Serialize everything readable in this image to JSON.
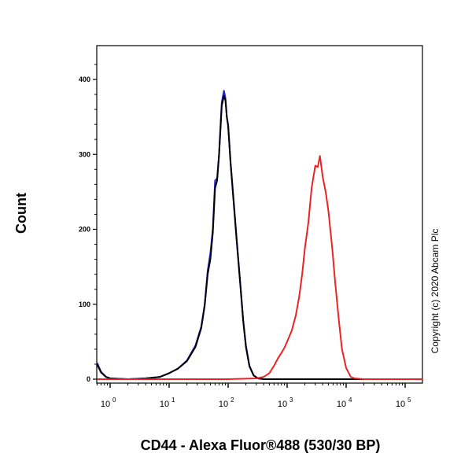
{
  "chart_data": {
    "type": "line",
    "xlabel": "CD44 - Alexa Fluor®488 (530/30 BP)",
    "ylabel": "Count",
    "x_scale": "log",
    "xlim": [
      0.6,
      200000
    ],
    "ylim": [
      0,
      440
    ],
    "x_ticks": [
      {
        "base": "10",
        "exp": "0",
        "value": 1
      },
      {
        "base": "10",
        "exp": "1",
        "value": 10
      },
      {
        "base": "10",
        "exp": "2",
        "value": 100
      },
      {
        "base": "10",
        "exp": "3",
        "value": 1000
      },
      {
        "base": "10",
        "exp": "4",
        "value": 10000
      },
      {
        "base": "10",
        "exp": "5",
        "value": 100000
      }
    ],
    "y_ticks": [
      {
        "label": "0",
        "value": 0
      },
      {
        "label": "100",
        "value": 100
      },
      {
        "label": "200",
        "value": 200
      },
      {
        "label": "300",
        "value": 300
      },
      {
        "label": "400",
        "value": 400
      }
    ],
    "series": [
      {
        "color": "#2222cc",
        "x": [
          0.6,
          0.7,
          0.85,
          1,
          2,
          4,
          7,
          10,
          14,
          20,
          28,
          35,
          40,
          45,
          50,
          55,
          60,
          65,
          70,
          78,
          85,
          90,
          95,
          100,
          110,
          125,
          140,
          160,
          180,
          200,
          230,
          270,
          320,
          400,
          600,
          1000,
          5000,
          100000,
          200000
        ],
        "y": [
          22,
          10,
          3,
          1,
          0,
          1,
          3,
          8,
          14,
          25,
          45,
          70,
          100,
          145,
          168,
          200,
          265,
          268,
          300,
          370,
          385,
          375,
          350,
          340,
          290,
          235,
          185,
          130,
          80,
          45,
          18,
          5,
          1,
          0,
          0,
          0,
          0,
          0,
          0
        ]
      },
      {
        "color": "#000000",
        "x": [
          0.6,
          0.7,
          0.85,
          1,
          2,
          4,
          7,
          10,
          14,
          20,
          28,
          35,
          40,
          45,
          50,
          55,
          60,
          65,
          70,
          78,
          85,
          90,
          95,
          100,
          110,
          125,
          140,
          160,
          180,
          200,
          230,
          270,
          320,
          400,
          600,
          1000,
          5000,
          100000,
          200000
        ],
        "y": [
          20,
          9,
          3,
          1,
          0,
          1,
          3,
          8,
          14,
          24,
          43,
          68,
          98,
          140,
          160,
          195,
          255,
          265,
          298,
          365,
          378,
          372,
          350,
          338,
          288,
          232,
          183,
          128,
          78,
          43,
          17,
          5,
          1,
          0,
          0,
          0,
          0,
          0,
          0
        ]
      },
      {
        "color": "#ee2222",
        "x": [
          0.6,
          100,
          300,
          400,
          500,
          600,
          700,
          800,
          900,
          1000,
          1200,
          1400,
          1600,
          1800,
          2000,
          2300,
          2600,
          3000,
          3300,
          3600,
          4000,
          4500,
          5000,
          5800,
          6500,
          7500,
          8500,
          10000,
          12000,
          14000,
          20000,
          200000
        ],
        "y": [
          0,
          0,
          1,
          3,
          8,
          18,
          28,
          35,
          42,
          50,
          65,
          85,
          110,
          140,
          175,
          210,
          255,
          285,
          283,
          298,
          270,
          250,
          225,
          175,
          130,
          80,
          40,
          15,
          3,
          1,
          0,
          0
        ]
      }
    ]
  },
  "copyright": "Copyright (c) 2020 Abcam Plc"
}
